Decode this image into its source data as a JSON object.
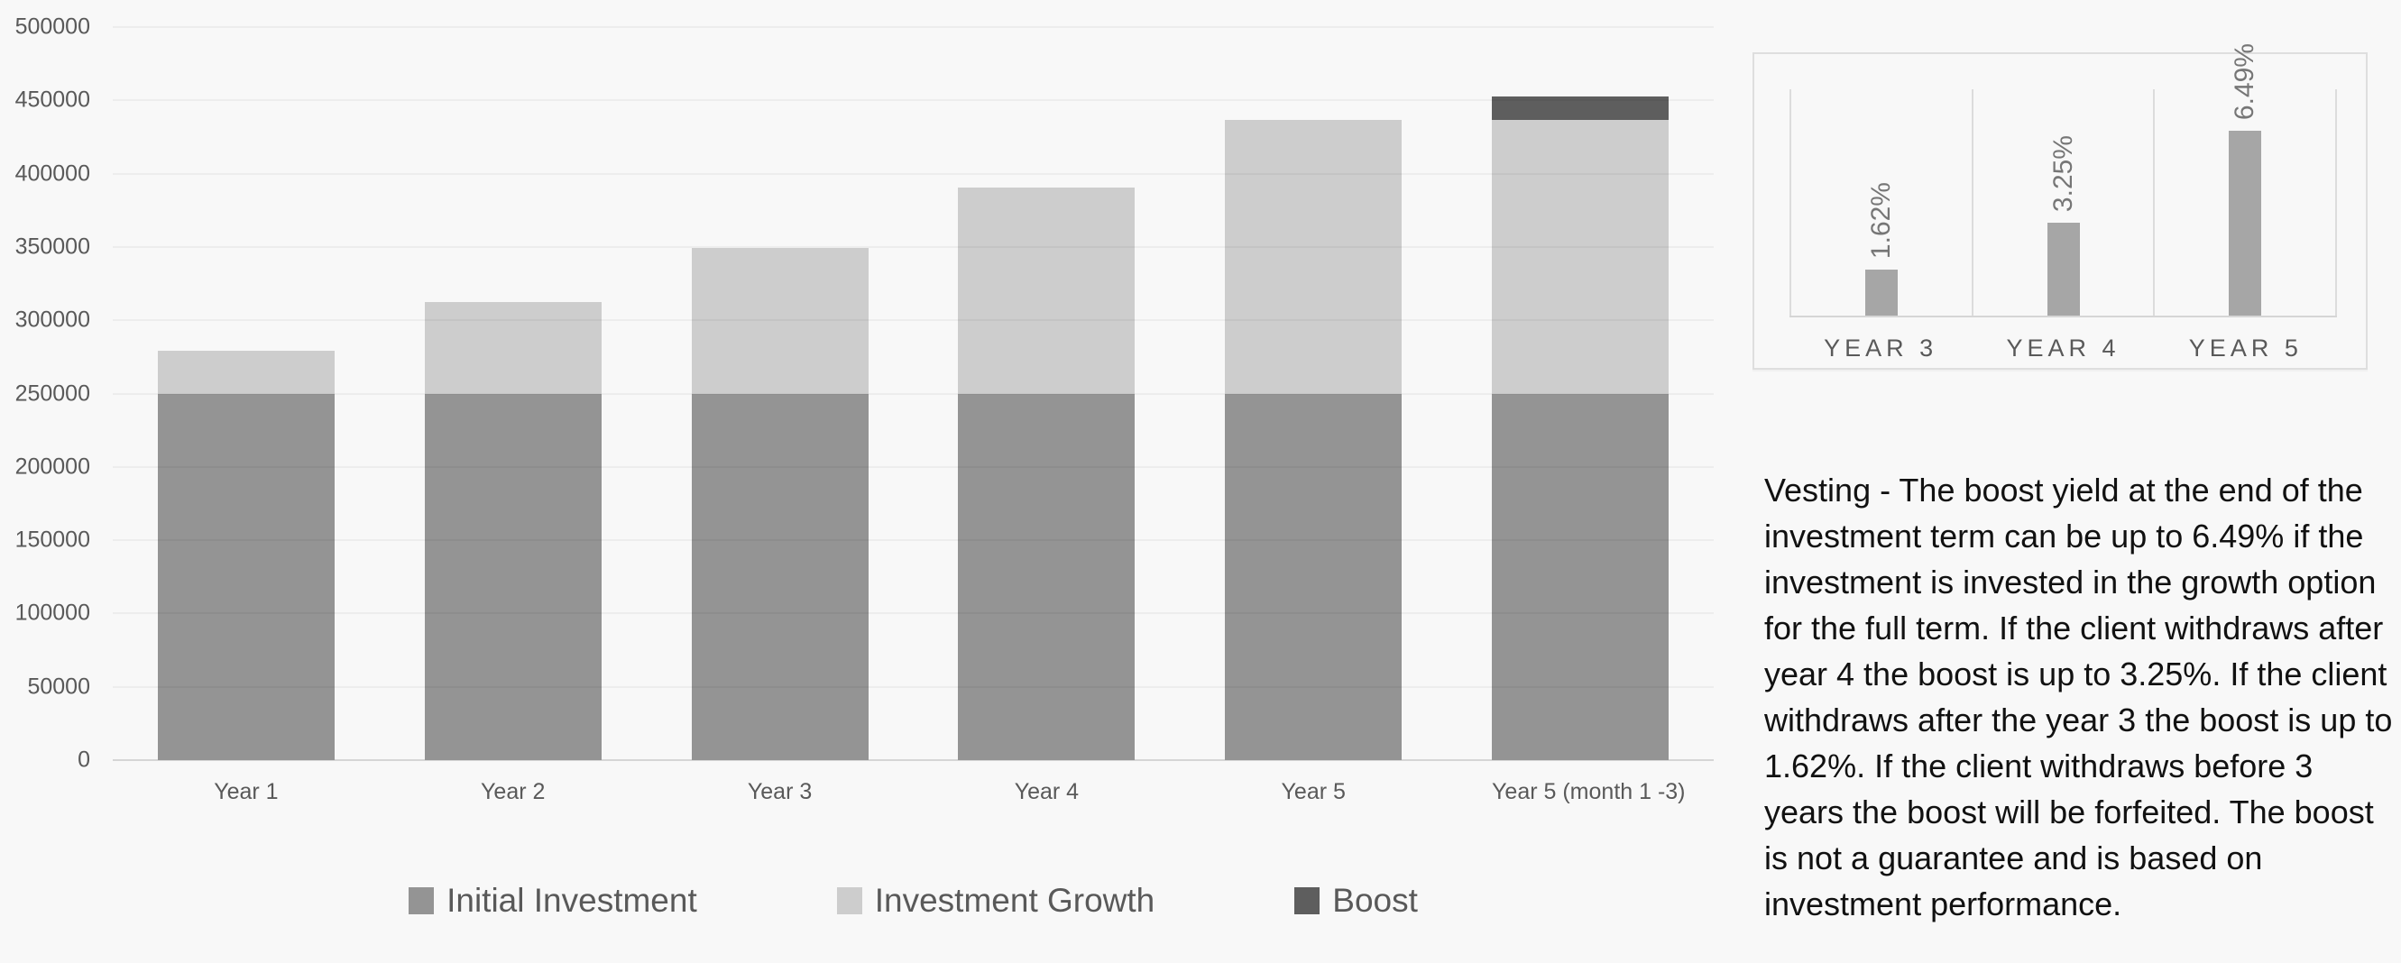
{
  "page": {
    "background": "#f8f8f8"
  },
  "chart_data": [
    {
      "name": "investment-growth-stacked-chart",
      "type": "bar",
      "stacked": true,
      "categories": [
        "Year 1",
        "Year 2",
        "Year 3",
        "Year 4",
        "Year 5",
        "Year 5 (month 1 -3)"
      ],
      "series": [
        {
          "name": "Initial Investment",
          "color": "#949494",
          "values": [
            250000,
            250000,
            250000,
            250000,
            250000,
            250000
          ]
        },
        {
          "name": "Investment Growth",
          "color": "#cdcdcd",
          "values": [
            29500,
            62500,
            99300,
            140500,
            186600,
            186600
          ]
        },
        {
          "name": "Boost",
          "color": "#5e5e5e",
          "values": [
            0,
            0,
            0,
            0,
            0,
            16225
          ]
        }
      ],
      "totals": [
        279500,
        312500,
        349300,
        390500,
        436600,
        452825
      ],
      "ylim": [
        0,
        500000
      ],
      "ytick_step": 50000,
      "ytick_labels": [
        "0",
        "50000",
        "100000",
        "150000",
        "200000",
        "250000",
        "300000",
        "350000",
        "400000",
        "450000",
        "500000"
      ],
      "grid": "horizontal",
      "legend_position": "bottom"
    },
    {
      "name": "boost-yield-chart",
      "type": "bar",
      "categories": [
        "YEAR 3",
        "YEAR 4",
        "YEAR 5"
      ],
      "values": [
        1.62,
        3.25,
        6.49
      ],
      "data_labels": [
        "1.62%",
        "3.25%",
        "6.49%"
      ],
      "data_label_rotation": -90,
      "bar_color": "#a6a6a6",
      "ylim": [
        0,
        8
      ],
      "grid": "vertical-panel-lines",
      "legend_position": "none"
    }
  ],
  "vesting_text": "Vesting - The boost yield at the end of the investment term can be up to 6.49% if the investment is invested in the growth option for the full term. If the client withdraws after year 4 the boost is up to 3.25%. If the client withdraws after the year 3 the boost is up to 1.62%. If the client withdraws before 3 years the boost will be forfeited. The boost is not a guarantee and is based on investment performance."
}
